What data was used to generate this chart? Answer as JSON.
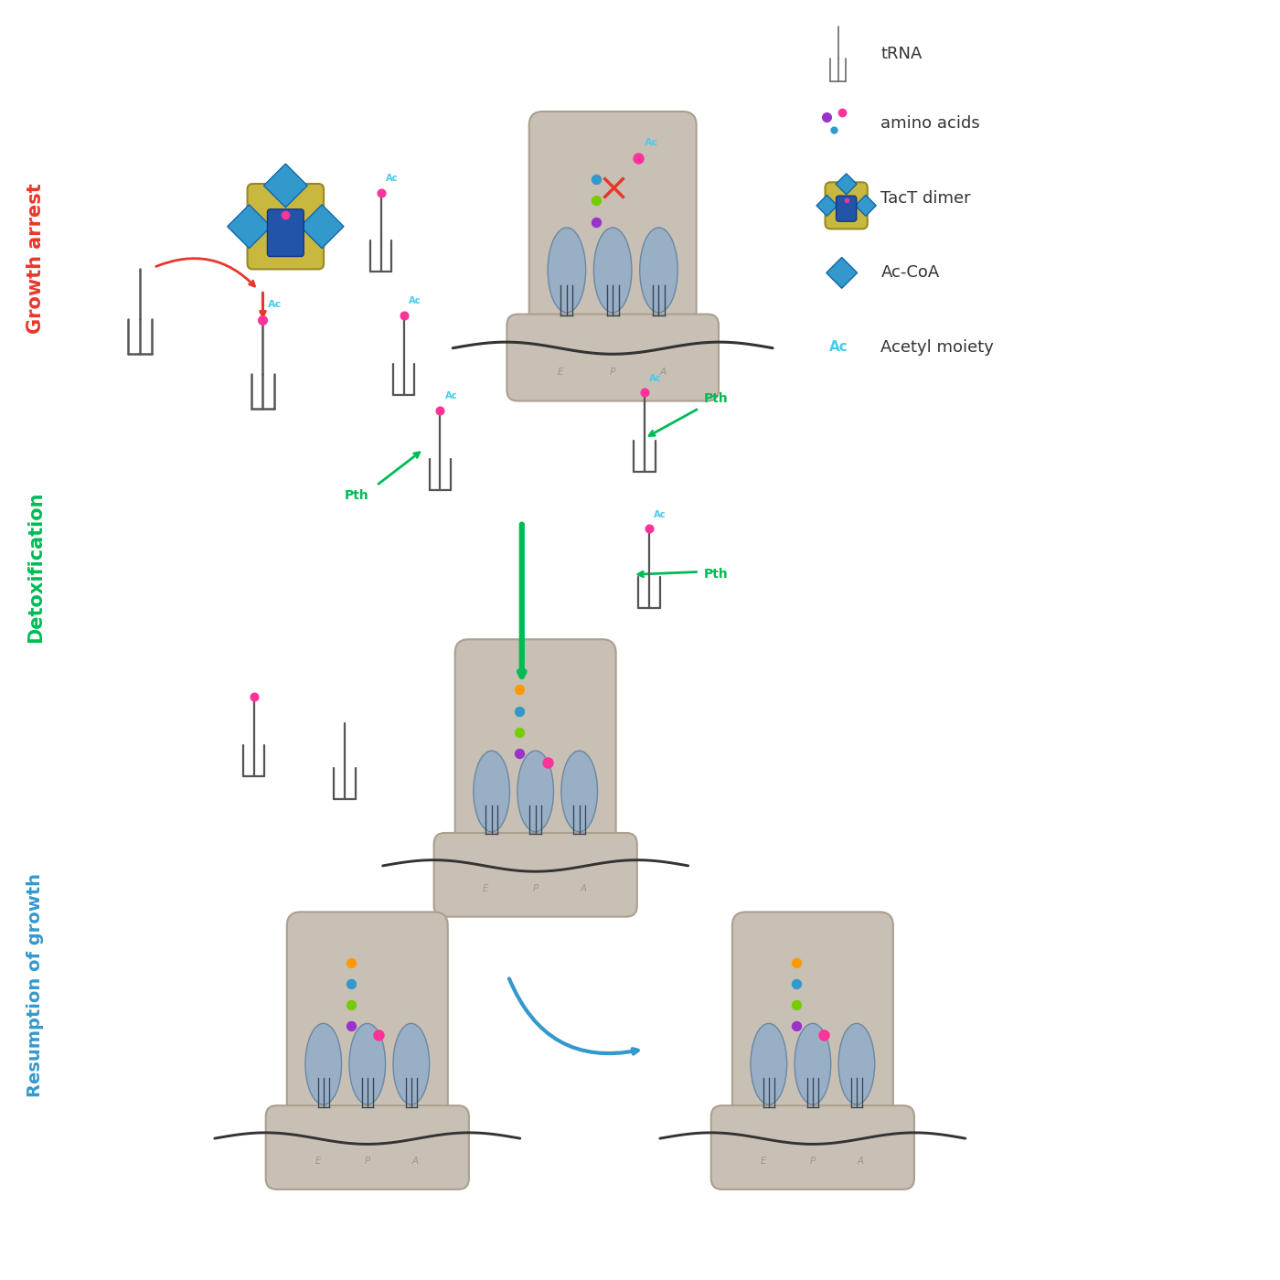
{
  "background_color": "#ffffff",
  "section_labels": {
    "growth_arrest": "Growth arrest",
    "detoxification": "Detoxification",
    "resumption": "Resumption of growth"
  },
  "section_label_colors": {
    "growth_arrest": "#e8372a",
    "detoxification": "#00bb55",
    "resumption": "#3399cc"
  },
  "colors": {
    "tRNA_body": "#555555",
    "amino_acid_pink": "#ff3399",
    "amino_acid_purple": "#9933cc",
    "amino_acid_green": "#77cc00",
    "amino_acid_blue": "#3399cc",
    "amino_acid_orange": "#ff9900",
    "tact_yellow": "#c8b840",
    "tact_blue": "#3399cc",
    "ribosome_body": "#c8c0b5",
    "ribosome_slot": "#88aacc",
    "mRNA": "#333333",
    "red_arrow": "#e8372a",
    "green_arrow": "#00bb55",
    "blue_arrow": "#3399cc",
    "ac_label": "#44ccee",
    "pth_label": "#00bb55",
    "cross": "#e8372a"
  }
}
